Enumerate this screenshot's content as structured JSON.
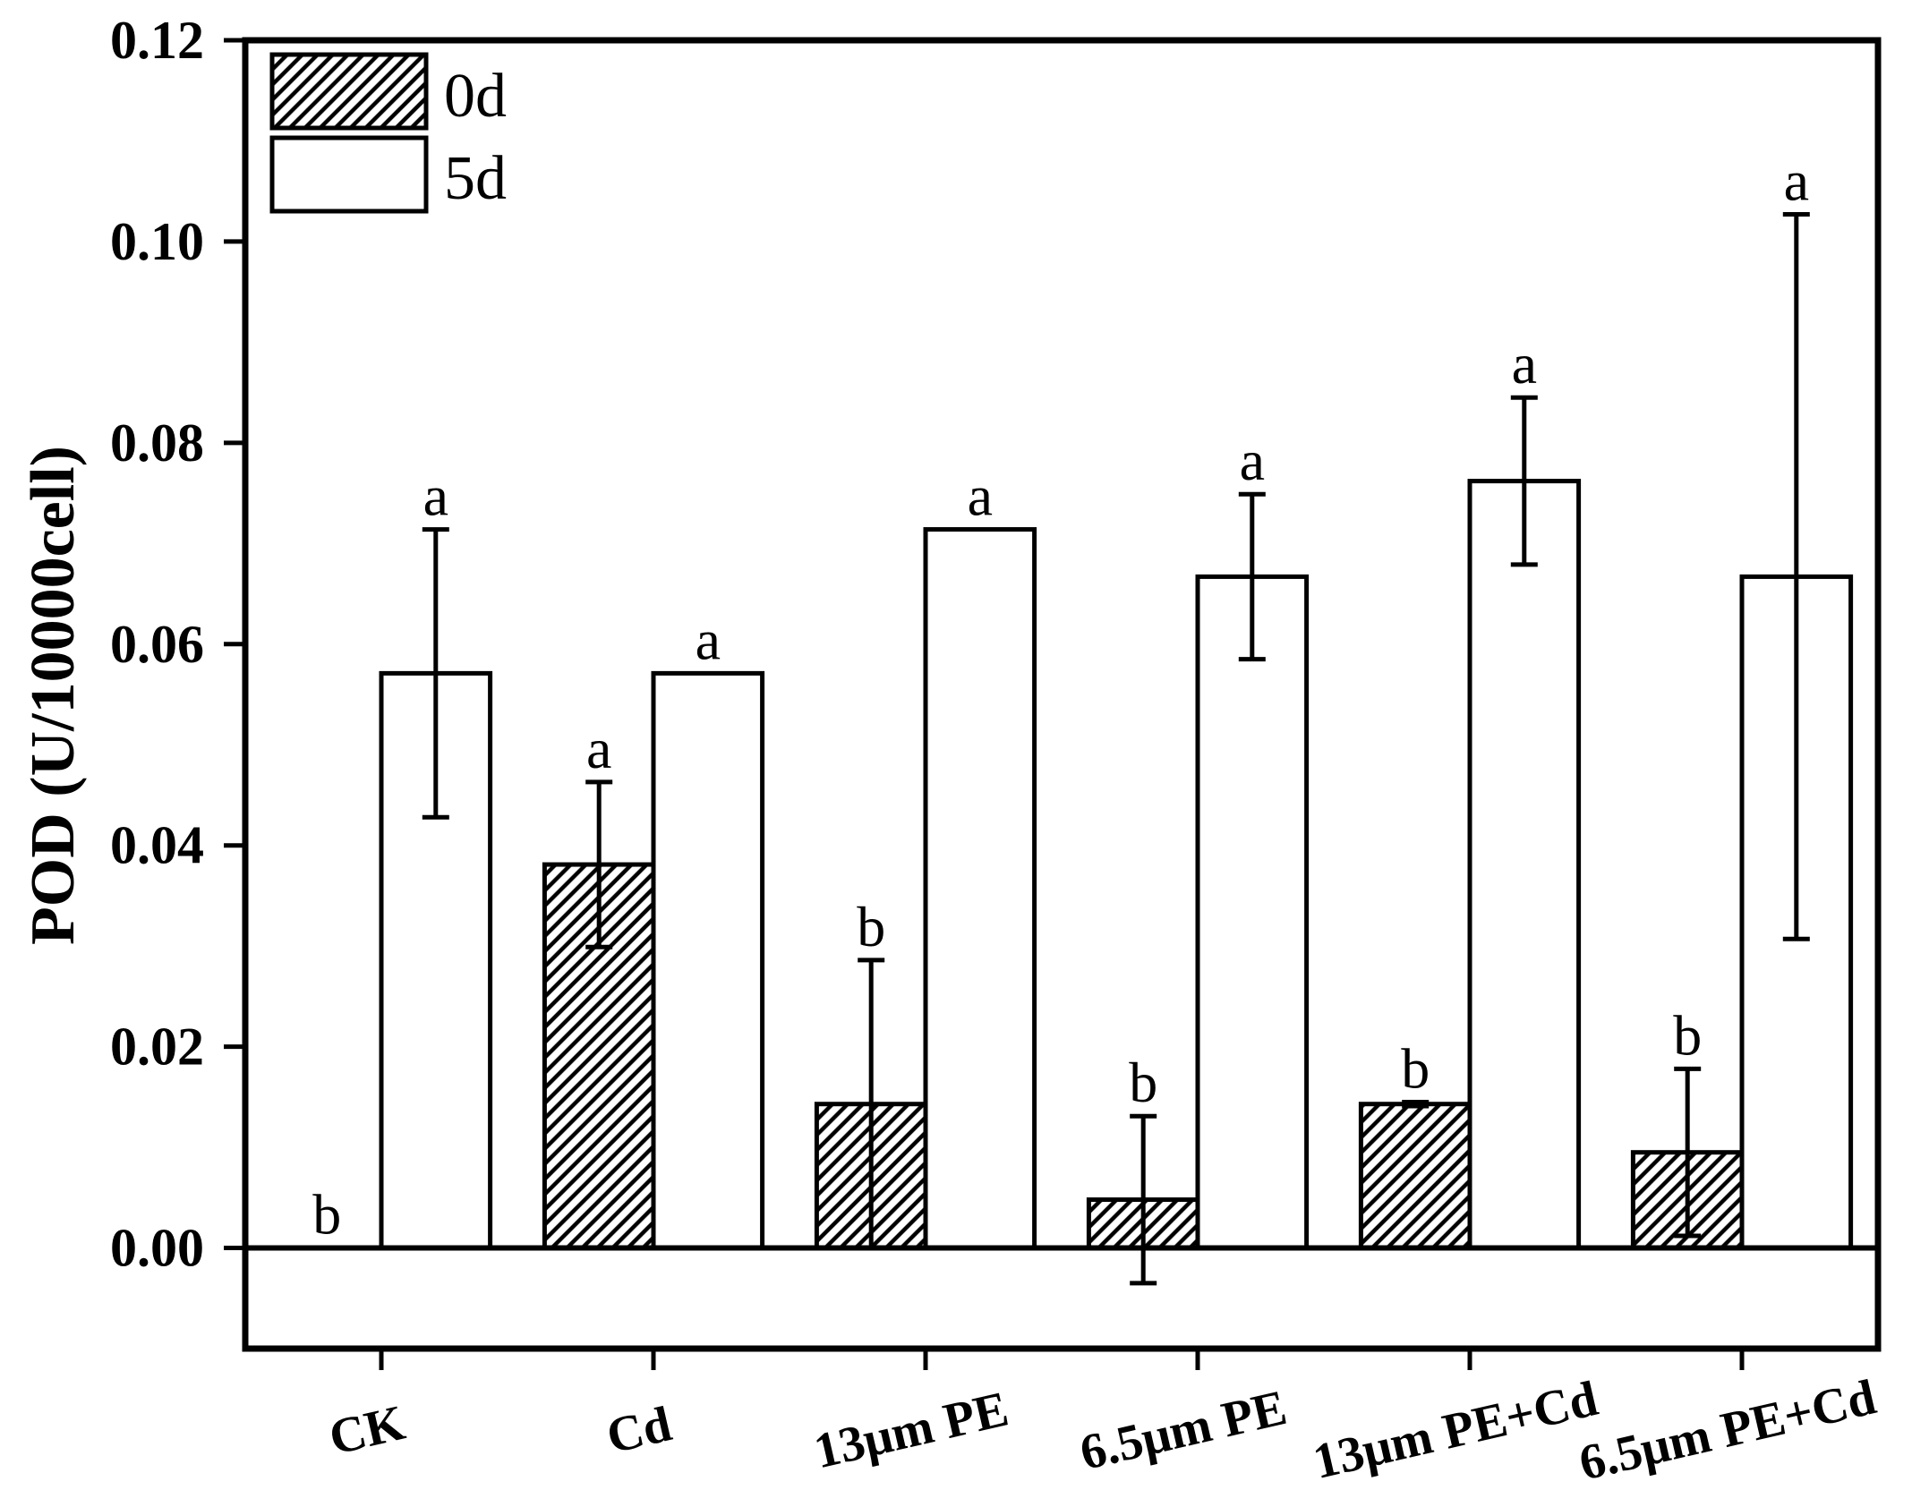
{
  "chart_data": {
    "type": "bar",
    "ylabel": "POD (U/10000cell)",
    "ylim": [
      -0.01,
      0.12
    ],
    "yticks": [
      "0.00",
      "0.02",
      "0.04",
      "0.06",
      "0.08",
      "0.10",
      "0.12"
    ],
    "categories": [
      "CK",
      "Cd",
      "13μm PE",
      "6.5μm PE",
      "13μm PE+Cd",
      "6.5μm PE+Cd"
    ],
    "series": [
      {
        "name": "0d",
        "hatched": true,
        "color": "#000000",
        "values": [
          0,
          0.0381,
          0.0143,
          0.0048,
          0.0143,
          0.0095
        ],
        "errors": [
          0,
          0.0082,
          0.0143,
          0.0083,
          0.0002,
          0.0083
        ],
        "letters": [
          "b",
          "a",
          "b",
          "b",
          "b",
          "b"
        ]
      },
      {
        "name": "5d",
        "hatched": false,
        "color": "#ffffff",
        "values": [
          0.0571,
          0.0571,
          0.0714,
          0.0667,
          0.0762,
          0.0667
        ],
        "errors": [
          0.0143,
          0,
          0,
          0.0082,
          0.0083,
          0.036
        ],
        "letters": [
          "a",
          "a",
          "a",
          "a",
          "a",
          "a"
        ]
      }
    ],
    "legend": "top-left",
    "grid": false
  }
}
